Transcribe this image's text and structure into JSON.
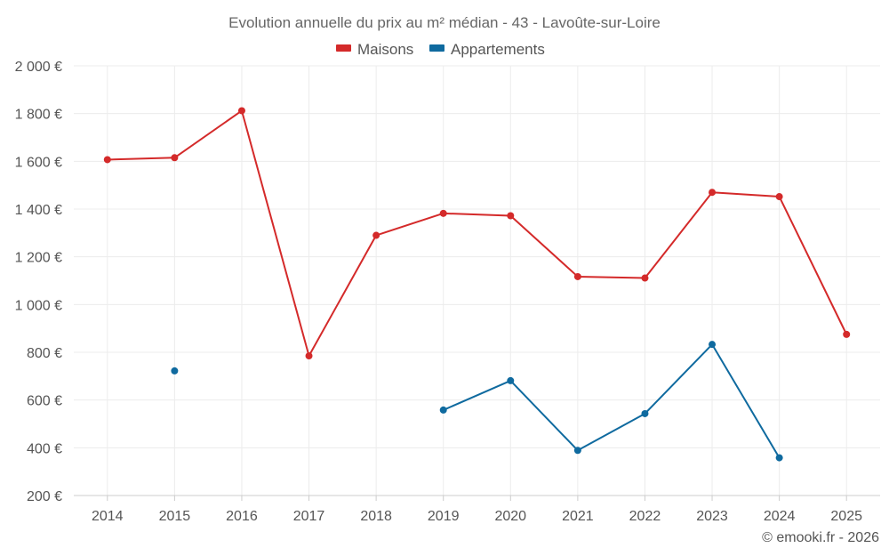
{
  "chart_data": {
    "type": "line",
    "title": "Evolution annuelle du prix au m² médian - 43 - Lavoûte-sur-Loire",
    "categories": [
      "2014",
      "2015",
      "2016",
      "2017",
      "2018",
      "2019",
      "2020",
      "2021",
      "2022",
      "2023",
      "2024",
      "2025"
    ],
    "series": [
      {
        "name": "Maisons",
        "color": "#d42a2a",
        "values": [
          1607,
          1615,
          1812,
          785,
          1290,
          1382,
          1372,
          1117,
          1111,
          1470,
          1452,
          875
        ]
      },
      {
        "name": "Appartements",
        "color": "#0f6a9f",
        "values": [
          null,
          722,
          null,
          null,
          null,
          558,
          681,
          389,
          543,
          833,
          358,
          null
        ]
      }
    ],
    "ylim": [
      200,
      2000
    ],
    "yticks": [
      200,
      400,
      600,
      800,
      1000,
      1200,
      1400,
      1600,
      1800,
      2000
    ],
    "ytick_labels": [
      "200 €",
      "400 €",
      "600 €",
      "800 €",
      "1 000 €",
      "1 200 €",
      "1 400 €",
      "1 600 €",
      "1 800 €",
      "2 000 €"
    ],
    "legend_position": "top-center",
    "grid": true,
    "credit": "© emooki.fr - 2026"
  }
}
